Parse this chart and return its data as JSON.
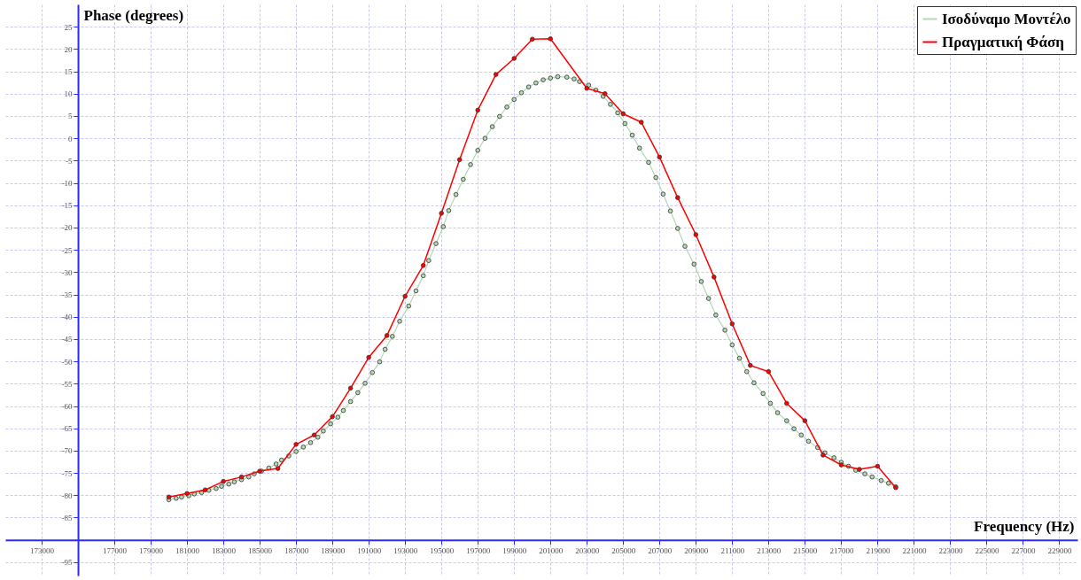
{
  "chart_data": {
    "type": "line",
    "xlabel": "Frequency (Hz)",
    "ylabel": "Phase (degrees)",
    "xlim": [
      171000,
      230000
    ],
    "ylim": [
      -98,
      30
    ],
    "xticks": [
      173000,
      {
        "value": 175000,
        "label": null
      },
      177000,
      179000,
      181000,
      183000,
      185000,
      187000,
      189000,
      191000,
      193000,
      195000,
      197000,
      199000,
      201000,
      203000,
      205000,
      207000,
      209000,
      211000,
      213000,
      215000,
      217000,
      219000,
      221000,
      223000,
      225000,
      227000,
      229000
    ],
    "yticks": [
      -95,
      {
        "value": -90,
        "label": null
      },
      -85,
      -80,
      -75,
      -70,
      -65,
      -60,
      -55,
      -50,
      -45,
      -40,
      -35,
      -30,
      -25,
      -20,
      -15,
      -10,
      -5,
      0,
      5,
      10,
      15,
      20,
      25
    ],
    "grid": true,
    "legend": "top right",
    "marker": "circle",
    "line_style": "solid",
    "series": [
      {
        "name": "Ισοδύναμο Μοντέλο",
        "color": "#b4d8b4",
        "x": [
          180000,
          180400,
          180700,
          181100,
          181400,
          181800,
          182200,
          182600,
          182900,
          183300,
          183600,
          184000,
          184400,
          184700,
          185100,
          185500,
          185900,
          186200,
          186600,
          187000,
          187400,
          187800,
          188200,
          188500,
          188900,
          189300,
          189600,
          190000,
          190400,
          190800,
          191200,
          191600,
          191900,
          192300,
          192700,
          193200,
          193600,
          194000,
          194300,
          194700,
          195100,
          195400,
          195800,
          196200,
          196600,
          197000,
          197400,
          197800,
          198200,
          198600,
          199000,
          199400,
          199800,
          200200,
          200600,
          201000,
          201400,
          201900,
          202300,
          202600,
          203100,
          203500,
          203900,
          204300,
          204700,
          205100,
          205500,
          205900,
          206400,
          206800,
          207200,
          207600,
          208000,
          208400,
          208900,
          209300,
          209700,
          210100,
          210600,
          211000,
          211400,
          211800,
          212200,
          212700,
          213100,
          213500,
          214000,
          214400,
          214800,
          215200,
          215700,
          216100,
          216600,
          217000,
          217400,
          217800,
          218300,
          218700,
          219200,
          219600,
          220000
        ],
        "values": [
          -81.0,
          -80.7,
          -80.4,
          -80.1,
          -79.7,
          -79.4,
          -78.9,
          -78.5,
          -78.0,
          -77.5,
          -77.0,
          -76.5,
          -75.9,
          -75.2,
          -74.6,
          -73.9,
          -73.0,
          -72.1,
          -71.2,
          -70.2,
          -69.2,
          -68.2,
          -67.0,
          -65.6,
          -64.0,
          -62.5,
          -61.0,
          -59.0,
          -57.0,
          -54.9,
          -52.5,
          -50.1,
          -47.3,
          -44.4,
          -41.0,
          -37.6,
          -34.2,
          -30.8,
          -27.4,
          -23.6,
          -19.8,
          -16.2,
          -12.6,
          -9.2,
          -5.9,
          -2.7,
          0.0,
          2.6,
          4.9,
          7.0,
          8.7,
          10.2,
          11.5,
          12.4,
          13.1,
          13.5,
          13.8,
          13.7,
          13.3,
          12.7,
          11.9,
          10.8,
          9.4,
          7.6,
          5.7,
          3.3,
          0.7,
          -2.2,
          -5.4,
          -8.8,
          -12.5,
          -16.3,
          -20.2,
          -24.2,
          -28.2,
          -32.1,
          -35.9,
          -39.6,
          -43.0,
          -46.3,
          -49.3,
          -52.3,
          -54.8,
          -57.2,
          -59.4,
          -61.5,
          -63.3,
          -65.1,
          -66.5,
          -67.9,
          -69.3,
          -70.5,
          -71.6,
          -72.6,
          -73.5,
          -74.4,
          -75.2,
          -75.9,
          -76.7,
          -77.3,
          -78.1
        ]
      },
      {
        "name": "Πραγματική Φάση",
        "color": "#ff0000",
        "x": [
          180000,
          181000,
          182000,
          183000,
          184000,
          185000,
          186000,
          187000,
          188000,
          189000,
          190000,
          191000,
          192000,
          193000,
          194000,
          195000,
          196000,
          197000,
          198000,
          199000,
          200000,
          201000,
          203000,
          204000,
          205000,
          206000,
          207000,
          208000,
          209000,
          210000,
          211000,
          212000,
          213000,
          214000,
          215000,
          216000,
          217000,
          218000,
          219000,
          220000
        ],
        "values": [
          -80.4,
          -79.6,
          -78.8,
          -76.9,
          -75.9,
          -74.6,
          -74.0,
          -68.6,
          -66.5,
          -62.4,
          -56.0,
          -49.1,
          -44.2,
          -35.4,
          -28.5,
          -16.8,
          -4.8,
          6.3,
          14.3,
          17.9,
          22.2,
          22.3,
          11.2,
          10.0,
          5.5,
          3.6,
          -4.2,
          -13.3,
          -21.6,
          -31.1,
          -41.6,
          -50.9,
          -52.3,
          -59.4,
          -63.3,
          -71.0,
          -73.2,
          -74.2,
          -73.5,
          -78.3
        ]
      }
    ]
  }
}
